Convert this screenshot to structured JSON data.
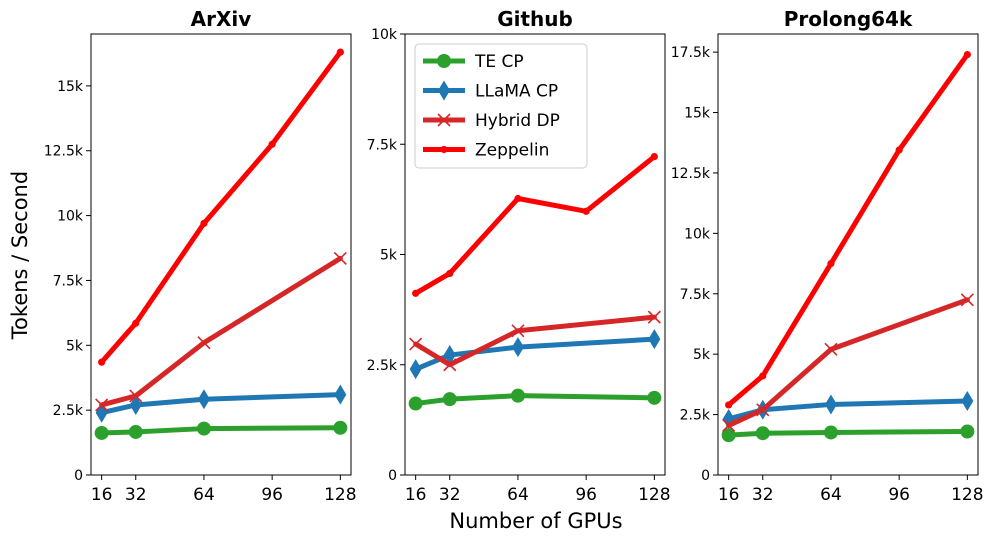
{
  "figure": {
    "shared_xlabel": "Number of GPUs",
    "shared_ylabel": "Tokens / Second"
  },
  "legend": [
    {
      "label": "TE CP",
      "color": "#2ca02c",
      "marker": "circle"
    },
    {
      "label": "LLaMA CP",
      "color": "#1f77b4",
      "marker": "diamond"
    },
    {
      "label": "Hybrid DP",
      "color": "#d62728",
      "marker": "x"
    },
    {
      "label": "Zeppelin",
      "color": "#ff0000",
      "marker": "dot"
    }
  ],
  "chart_data": [
    {
      "type": "line",
      "title": "ArXiv",
      "xlabel": "",
      "ylabel": "Tokens / Second",
      "xlim": [
        11,
        133
      ],
      "ylim": [
        0,
        17000
      ],
      "xticks": [
        16,
        32,
        64,
        96,
        128
      ],
      "yticks": [
        0,
        2500,
        5000,
        7500,
        10000,
        12500,
        15000
      ],
      "ytick_labels": [
        "0",
        "2.5k",
        "5k",
        "7.5k",
        "10k",
        "12.5k",
        "15k"
      ],
      "legend": false,
      "series": [
        {
          "name": "TE CP",
          "color": "#2ca02c",
          "marker": "circle",
          "x": [
            16,
            32,
            64,
            128
          ],
          "values": [
            1620,
            1660,
            1790,
            1820
          ]
        },
        {
          "name": "LLaMA CP",
          "color": "#1f77b4",
          "marker": "diamond",
          "x": [
            16,
            32,
            64,
            128
          ],
          "values": [
            2400,
            2700,
            2920,
            3100
          ]
        },
        {
          "name": "Hybrid DP",
          "color": "#d62728",
          "marker": "x",
          "x": [
            16,
            32,
            64,
            128
          ],
          "values": [
            2700,
            3050,
            5100,
            8350
          ]
        },
        {
          "name": "Zeppelin",
          "color": "#ff0000",
          "marker": "dot",
          "x": [
            16,
            32,
            64,
            96,
            128
          ],
          "values": [
            4350,
            5850,
            9700,
            12750,
            16300
          ]
        }
      ]
    },
    {
      "type": "line",
      "title": "Github",
      "xlabel": "Number of GPUs",
      "ylabel": "",
      "xlim": [
        11,
        133
      ],
      "ylim": [
        0,
        10000
      ],
      "xticks": [
        16,
        32,
        64,
        96,
        128
      ],
      "yticks": [
        0,
        2500,
        5000,
        7500,
        10000
      ],
      "ytick_labels": [
        "0",
        "2.5k",
        "5k",
        "7.5k",
        "10k"
      ],
      "legend": true,
      "series": [
        {
          "name": "TE CP",
          "color": "#2ca02c",
          "marker": "circle",
          "x": [
            16,
            32,
            64,
            128
          ],
          "values": [
            1620,
            1720,
            1800,
            1750
          ]
        },
        {
          "name": "LLaMA CP",
          "color": "#1f77b4",
          "marker": "diamond",
          "x": [
            16,
            32,
            64,
            128
          ],
          "values": [
            2400,
            2720,
            2900,
            3080
          ]
        },
        {
          "name": "Hybrid DP",
          "color": "#d62728",
          "marker": "x",
          "x": [
            16,
            32,
            64,
            128
          ],
          "values": [
            2970,
            2500,
            3270,
            3580
          ]
        },
        {
          "name": "Zeppelin",
          "color": "#ff0000",
          "marker": "dot",
          "x": [
            16,
            32,
            64,
            96,
            128
          ],
          "values": [
            4120,
            4570,
            6270,
            5980,
            7220
          ]
        }
      ]
    },
    {
      "type": "line",
      "title": "Prolong64k",
      "xlabel": "",
      "ylabel": "",
      "xlim": [
        11,
        133
      ],
      "ylim": [
        0,
        18250
      ],
      "xticks": [
        16,
        32,
        64,
        96,
        128
      ],
      "yticks": [
        0,
        2500,
        5000,
        7500,
        10000,
        12500,
        15000,
        17500
      ],
      "ytick_labels": [
        "0",
        "2.5k",
        "5k",
        "7.5k",
        "10k",
        "12.5k",
        "15k",
        "17.5k"
      ],
      "legend": false,
      "series": [
        {
          "name": "TE CP",
          "color": "#2ca02c",
          "marker": "circle",
          "x": [
            16,
            32,
            64,
            128
          ],
          "values": [
            1650,
            1730,
            1760,
            1800
          ]
        },
        {
          "name": "LLaMA CP",
          "color": "#1f77b4",
          "marker": "diamond",
          "x": [
            16,
            32,
            64,
            128
          ],
          "values": [
            2320,
            2700,
            2920,
            3060
          ]
        },
        {
          "name": "Hybrid DP",
          "color": "#d62728",
          "marker": "x",
          "x": [
            16,
            32,
            64,
            128
          ],
          "values": [
            2050,
            2700,
            5200,
            7250
          ]
        },
        {
          "name": "Zeppelin",
          "color": "#ff0000",
          "marker": "dot",
          "x": [
            16,
            32,
            64,
            96,
            128
          ],
          "values": [
            2900,
            4100,
            8750,
            13450,
            17400
          ]
        }
      ]
    }
  ]
}
